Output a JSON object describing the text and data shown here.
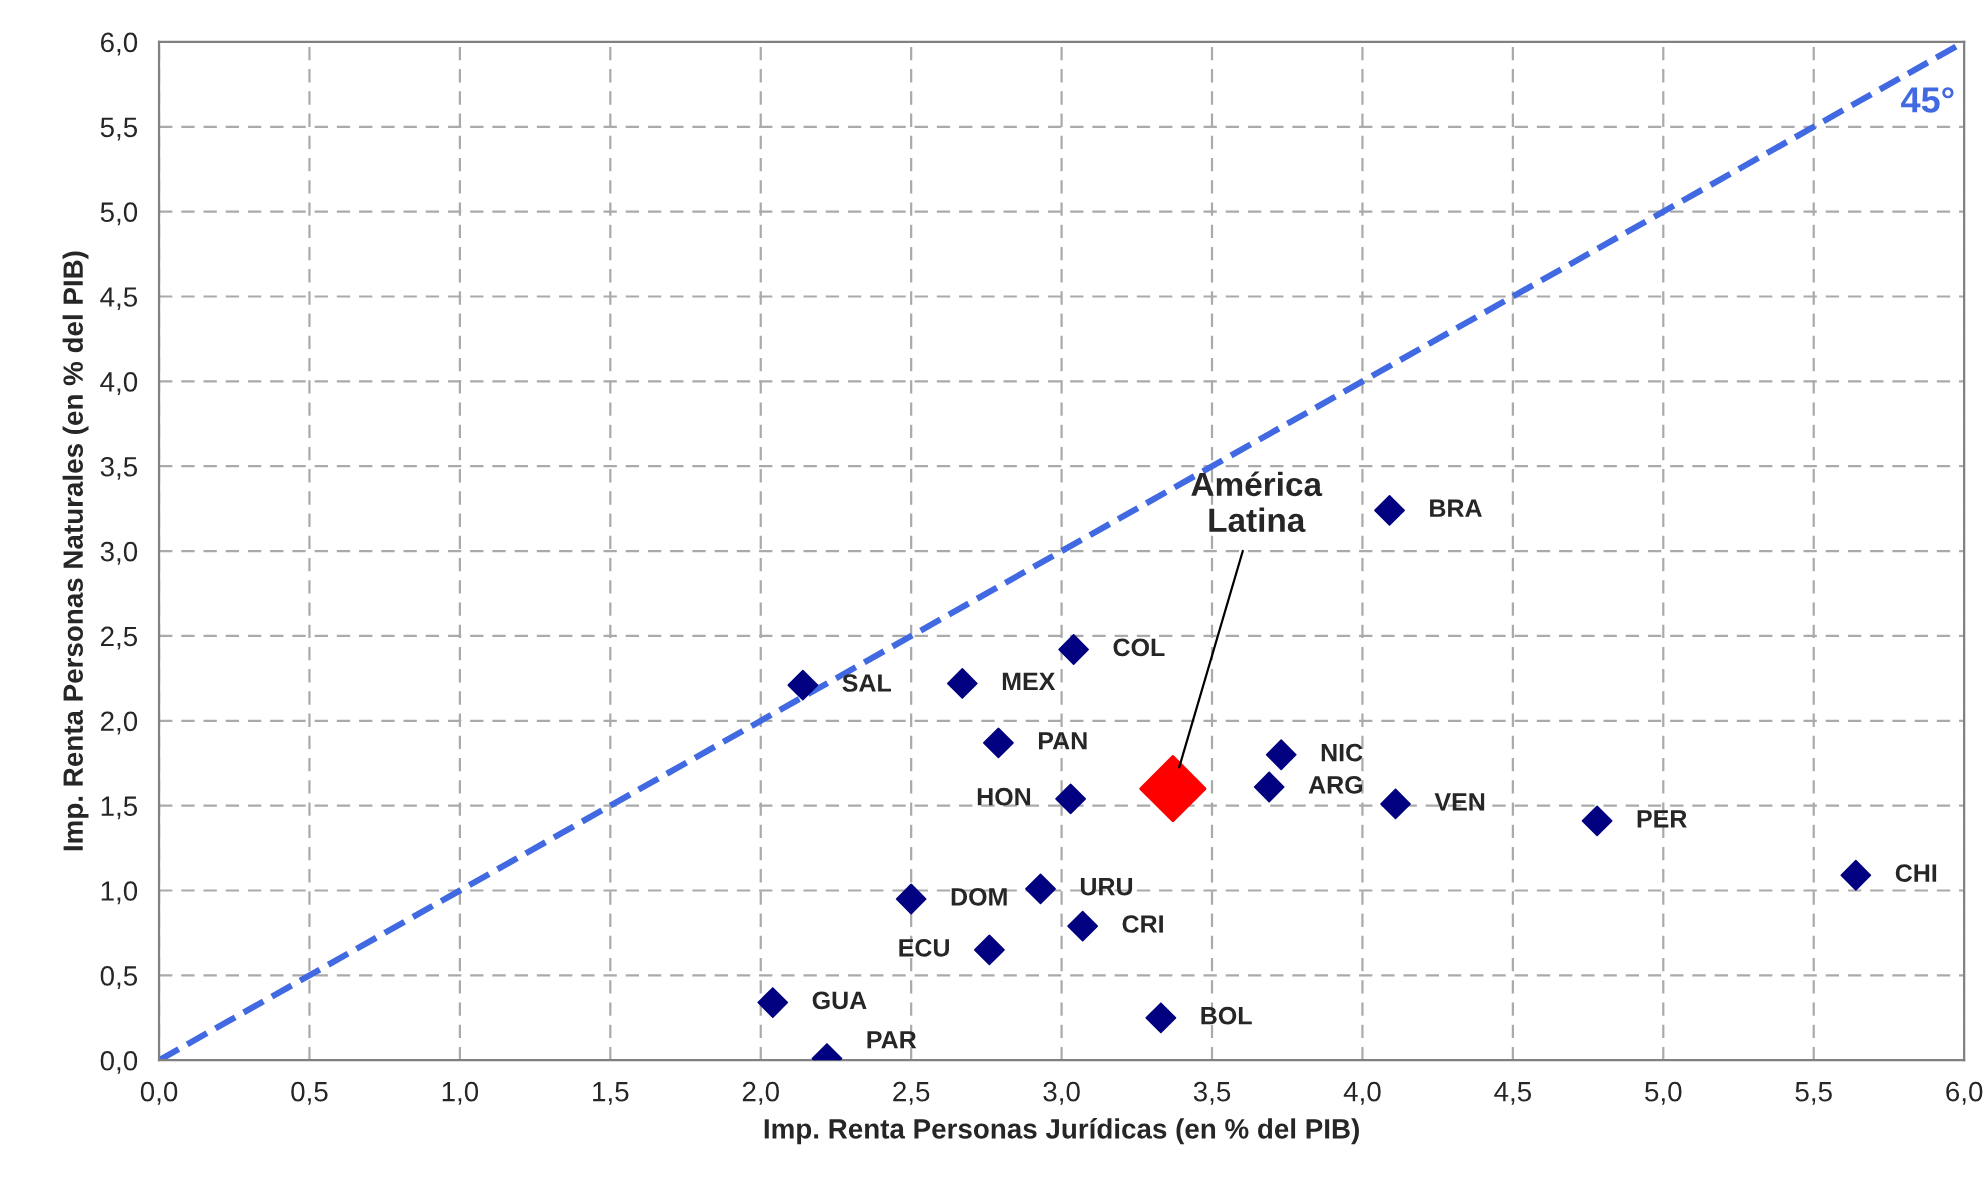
{
  "chart_data": {
    "type": "scatter",
    "xlabel": "Imp. Renta Personas Jurídicas (en % del PIB)",
    "ylabel": "Imp. Renta Personas Naturales (en % del PIB)",
    "series": [
      {
        "type": "line",
        "color": "#4169e1",
        "x": [
          0,
          6
        ],
        "values": [
          0,
          6
        ],
        "line_style": "dashed",
        "marker": "none"
      },
      {
        "color": "#000080",
        "marker": "diamond",
        "x": [
          2.14,
          2.67,
          3.04,
          2.79,
          3.03,
          4.09,
          3.73,
          3.69,
          4.11,
          4.78,
          5.64,
          2.93,
          2.5,
          3.07,
          2.76,
          2.04,
          2.22,
          3.33
        ],
        "values": [
          2.21,
          2.22,
          2.42,
          1.87,
          1.54,
          3.24,
          1.8,
          1.61,
          1.51,
          1.41,
          1.09,
          1.01,
          0.95,
          0.79,
          0.65,
          0.34,
          0.01,
          0.25
        ]
      },
      {
        "name": "América\nLatina",
        "color": "#ff0000",
        "marker": "diamond",
        "x": [
          3.37
        ],
        "values": [
          1.6
        ]
      }
    ],
    "annotations": [
      {
        "text": "SAL",
        "x": 2.14,
        "y": 2.21
      },
      {
        "text": "MEX",
        "x": 2.67,
        "y": 2.22
      },
      {
        "text": "COL",
        "x": 3.04,
        "y": 2.42
      },
      {
        "text": "PAN",
        "x": 2.79,
        "y": 1.87
      },
      {
        "text": "HON",
        "x": 3.03,
        "y": 1.54
      },
      {
        "text": "BRA",
        "x": 4.09,
        "y": 3.24
      },
      {
        "text": "NIC",
        "x": 3.73,
        "y": 1.8
      },
      {
        "text": "ARG",
        "x": 3.69,
        "y": 1.61
      },
      {
        "text": "VEN",
        "x": 4.11,
        "y": 1.51
      },
      {
        "text": "PER",
        "x": 4.78,
        "y": 1.41
      },
      {
        "text": "CHI",
        "x": 5.64,
        "y": 1.09
      },
      {
        "text": "URU",
        "x": 2.93,
        "y": 1.01
      },
      {
        "text": "DOM",
        "x": 2.5,
        "y": 0.95
      },
      {
        "text": "CRI",
        "x": 3.07,
        "y": 0.79
      },
      {
        "text": "ECU",
        "x": 2.76,
        "y": 0.65
      },
      {
        "text": "GUA",
        "x": 2.04,
        "y": 0.34
      },
      {
        "text": "PAR",
        "x": 2.22,
        "y": 0.01
      },
      {
        "text": "BOL",
        "x": 3.33,
        "y": 0.25
      },
      "45°"
    ],
    "xlim": [
      0,
      6
    ],
    "ylim": [
      0,
      6
    ],
    "xticks": [
      {
        "value": 0,
        "label": "0,0"
      },
      {
        "value": 0.5,
        "label": "0,5"
      },
      {
        "value": 1,
        "label": "1,0"
      },
      {
        "value": 1.5,
        "label": "1,5"
      },
      {
        "value": 2,
        "label": "2,0"
      },
      {
        "value": 2.5,
        "label": "2,5"
      },
      {
        "value": 3,
        "label": "3,0"
      },
      {
        "value": 3.5,
        "label": "3,5"
      },
      {
        "value": 4,
        "label": "4,0"
      },
      {
        "value": 4.5,
        "label": "4,5"
      },
      {
        "value": 5,
        "label": "5,0"
      },
      {
        "value": 5.5,
        "label": "5,5"
      },
      {
        "value": 6,
        "label": "6,0"
      }
    ],
    "yticks": [
      {
        "value": 0,
        "label": "0,0"
      },
      {
        "value": 0.5,
        "label": "0,5"
      },
      {
        "value": 1,
        "label": "1,0"
      },
      {
        "value": 1.5,
        "label": "1,5"
      },
      {
        "value": 2,
        "label": "2,0"
      },
      {
        "value": 2.5,
        "label": "2,5"
      },
      {
        "value": 3,
        "label": "3,0"
      },
      {
        "value": 3.5,
        "label": "3,5"
      },
      {
        "value": 4,
        "label": "4,0"
      },
      {
        "value": 4.5,
        "label": "4,5"
      },
      {
        "value": 5,
        "label": "5,0"
      },
      {
        "value": 5.5,
        "label": "5,5"
      },
      {
        "value": 6,
        "label": "6,0"
      }
    ],
    "grid": true,
    "legend": false
  }
}
